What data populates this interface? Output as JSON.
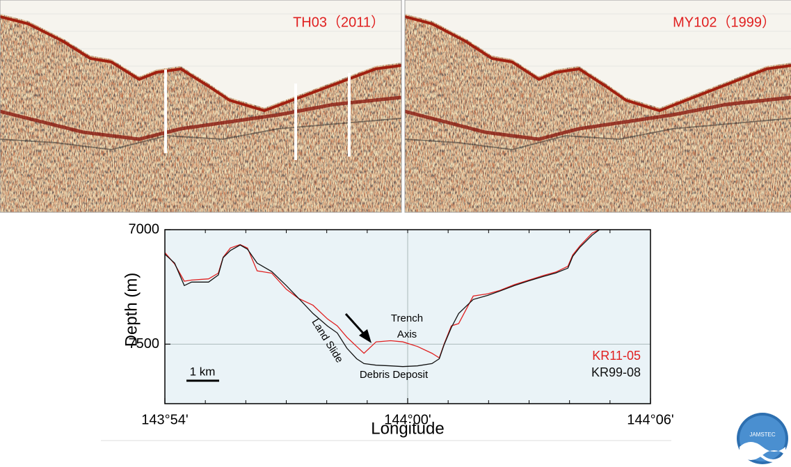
{
  "images": [
    {
      "label": "TH03（2011）"
    },
    {
      "label": "MY102（1999）"
    }
  ],
  "chart_data": {
    "type": "line",
    "x_label": "Longitude",
    "y_label": "Depth (m)",
    "xlim": [
      143.9,
      144.1
    ],
    "xticks": [
      {
        "value": 143.9,
        "label": "143°54'"
      },
      {
        "value": 144.0,
        "label": "144°00'"
      },
      {
        "value": 144.1,
        "label": "144°06'"
      }
    ],
    "ylim": [
      7000,
      7760
    ],
    "y_inverted": true,
    "yticks": [
      7000,
      7500
    ],
    "grid": true,
    "x": [
      143.9,
      143.904,
      143.908,
      143.911,
      143.918,
      143.922,
      143.924,
      143.927,
      143.931,
      143.934,
      143.938,
      143.944,
      143.95,
      143.955,
      143.961,
      143.967,
      143.971,
      143.975,
      143.979,
      143.982,
      143.987,
      143.993,
      143.998,
      144.004,
      144.01,
      144.013,
      144.015,
      144.018,
      144.021,
      144.027,
      144.033,
      144.038,
      144.044,
      144.05,
      144.056,
      144.061,
      144.066,
      144.068,
      144.071,
      144.076,
      144.079
    ],
    "series": [
      {
        "name": "KR11-05",
        "color": "#e02020",
        "values": [
          7100,
          7150,
          7225,
          7220,
          7215,
          7190,
          7120,
          7080,
          7065,
          7080,
          7180,
          7190,
          7260,
          7300,
          7330,
          7390,
          7420,
          7470,
          7510,
          7540,
          7490,
          7485,
          7490,
          7510,
          7540,
          7560,
          7500,
          7420,
          7410,
          7290,
          7280,
          7265,
          7240,
          7220,
          7200,
          7185,
          7160,
          7110,
          7070,
          7015,
          7000
        ]
      },
      {
        "name": "KR99-08",
        "color": "#111111",
        "values": [
          7107,
          7146,
          7244,
          7229,
          7229,
          7198,
          7122,
          7091,
          7067,
          7085,
          7146,
          7183,
          7244,
          7299,
          7366,
          7421,
          7451,
          7518,
          7564,
          7585,
          7592,
          7595,
          7598,
          7595,
          7585,
          7564,
          7503,
          7427,
          7366,
          7305,
          7287,
          7268,
          7244,
          7223,
          7204,
          7189,
          7168,
          7116,
          7076,
          7024,
          7000
        ]
      }
    ],
    "annotations": {
      "trench": "Trench",
      "axis": "Axis",
      "landslide": "Land Slide",
      "debris": "Debris Deposit",
      "scale": "1 km"
    }
  },
  "logo": "JAMSTEC"
}
